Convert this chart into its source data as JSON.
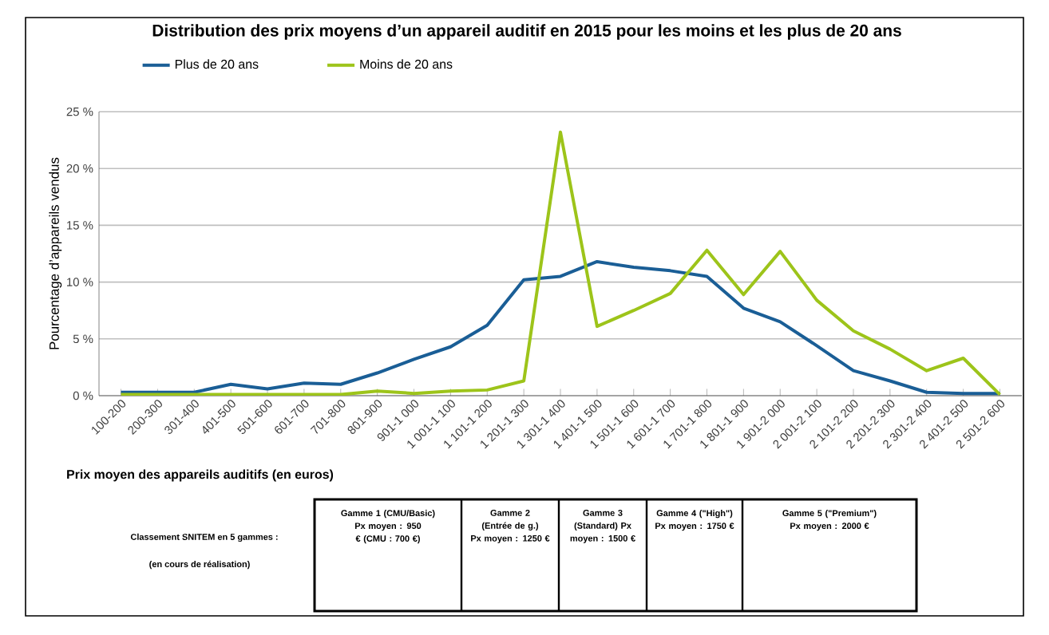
{
  "chart_data": {
    "type": "line",
    "title": "Distribution des prix moyens d’un appareil auditif en 2015 pour les moins et les plus de 20 ans",
    "xlabel": "Prix moyen des appareils auditifs (en euros)",
    "ylabel": "Pourcentage d’appareils vendus",
    "categories": [
      "100-200",
      "200-300",
      "301-400",
      "401-500",
      "501-600",
      "601-700",
      "701-800",
      "801-900",
      "901-1 000",
      "1 001-1 100",
      "1 101-1 200",
      "1 201-1 300",
      "1 301-1 400",
      "1 401-1 500",
      "1 501-1 600",
      "1 601-1 700",
      "1 701-1 800",
      "1 801-1 900",
      "1 901-2 000",
      "2 001-2 100",
      "2 101-2 200",
      "2 201-2 300",
      "2 301-2 400",
      "2 401-2 500",
      "2 501-2 600"
    ],
    "series": [
      {
        "name": "Plus de 20 ans",
        "color": "#1a5e96",
        "values": [
          0.3,
          0.3,
          0.3,
          1.0,
          0.6,
          1.1,
          1.0,
          2.0,
          3.2,
          4.3,
          6.2,
          10.2,
          10.5,
          11.8,
          11.3,
          11.0,
          10.5,
          7.7,
          6.5,
          4.4,
          2.2,
          1.3,
          0.3,
          0.2,
          0.2
        ]
      },
      {
        "name": "Moins de 20 ans",
        "color": "#9dc41a",
        "values": [
          0.1,
          0.1,
          0.1,
          0.1,
          0.1,
          0.1,
          0.1,
          0.4,
          0.2,
          0.4,
          0.5,
          1.3,
          23.2,
          6.1,
          7.5,
          9.0,
          12.8,
          8.9,
          12.7,
          8.4,
          5.7,
          4.1,
          2.2,
          3.3,
          0.1
        ]
      }
    ],
    "ylim": [
      0,
      25
    ],
    "yticks": [
      {
        "value": 0,
        "label": "0 %"
      },
      {
        "value": 5,
        "label": "5 %"
      },
      {
        "value": 10,
        "label": "10 %"
      },
      {
        "value": 15,
        "label": "15 %"
      },
      {
        "value": 20,
        "label": "20 %"
      },
      {
        "value": 25,
        "label": "25 %"
      }
    ],
    "grid": "y",
    "legend": "top",
    "annotations": [
      "Classement SNITEM en 5 gammes :",
      "(en cours de réalisation)",
      "Gamme 1 (CMU/Basic) Px moyen : 950 € (CMU : 700 €)",
      "Gamme 2 (Entrée de g.) Px moyen : 1250 €",
      "Gamme 3 (Standard) Px moyen : 1500 €",
      "Gamme 4 (\"High\") Px moyen : 1750 €",
      "Gamme 5 (\"Premium\") Px moyen : 2000 €"
    ]
  }
}
